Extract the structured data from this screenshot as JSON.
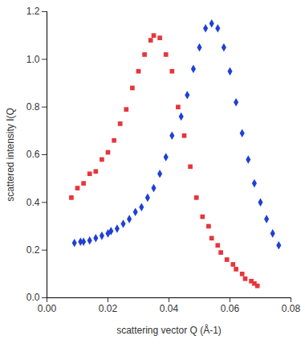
{
  "chart_data": {
    "type": "scatter",
    "x_label": "scattering vector Q (Å-1)",
    "y_label": "scattered intensity I(Q",
    "xlim": [
      0,
      0.08
    ],
    "xticks": [
      {
        "value": 0,
        "label": "0.00"
      },
      0.02,
      0.04,
      0.06,
      0.08
    ],
    "ylim": [
      0,
      1.2
    ],
    "yticks": [
      {
        "value": 0,
        "label": "0.0"
      },
      0.2,
      0.4,
      0.6,
      0.8,
      {
        "value": 1,
        "label": "1.0"
      },
      1.2
    ],
    "grid": false,
    "series": [
      {
        "color": "#e8343b",
        "marker": "square",
        "x": [
          0.008,
          0.01,
          0.012,
          0.014,
          0.016,
          0.018,
          0.02,
          0.022,
          0.024,
          0.026,
          0.028,
          0.03,
          0.032,
          0.034,
          0.035,
          0.037,
          0.039,
          0.041,
          0.043,
          0.045,
          0.047,
          0.049,
          0.051,
          0.053,
          0.054,
          0.056,
          0.057,
          0.059,
          0.061,
          0.062,
          0.064,
          0.065,
          0.067,
          0.068,
          0.069
        ],
        "values": [
          0.42,
          0.46,
          0.48,
          0.52,
          0.53,
          0.58,
          0.61,
          0.66,
          0.73,
          0.79,
          0.88,
          0.95,
          1.02,
          1.08,
          1.1,
          1.09,
          1.02,
          0.95,
          0.8,
          0.68,
          0.55,
          0.42,
          0.34,
          0.3,
          0.25,
          0.22,
          0.19,
          0.16,
          0.14,
          0.12,
          0.1,
          0.08,
          0.07,
          0.06,
          0.05
        ]
      },
      {
        "color": "#1f3fd6",
        "marker": "diamond",
        "x": [
          0.009,
          0.011,
          0.012,
          0.014,
          0.016,
          0.018,
          0.02,
          0.021,
          0.023,
          0.025,
          0.027,
          0.029,
          0.031,
          0.033,
          0.035,
          0.037,
          0.039,
          0.041,
          0.044,
          0.046,
          0.048,
          0.05,
          0.052,
          0.054,
          0.056,
          0.058,
          0.06,
          0.062,
          0.064,
          0.066,
          0.068,
          0.07,
          0.072,
          0.074,
          0.076
        ],
        "values": [
          0.23,
          0.235,
          0.235,
          0.24,
          0.25,
          0.26,
          0.27,
          0.28,
          0.29,
          0.31,
          0.33,
          0.36,
          0.38,
          0.42,
          0.46,
          0.52,
          0.59,
          0.68,
          0.76,
          0.85,
          0.96,
          1.05,
          1.13,
          1.15,
          1.13,
          1.05,
          0.95,
          0.82,
          0.69,
          0.58,
          0.48,
          0.4,
          0.33,
          0.27,
          0.22
        ]
      }
    ]
  }
}
